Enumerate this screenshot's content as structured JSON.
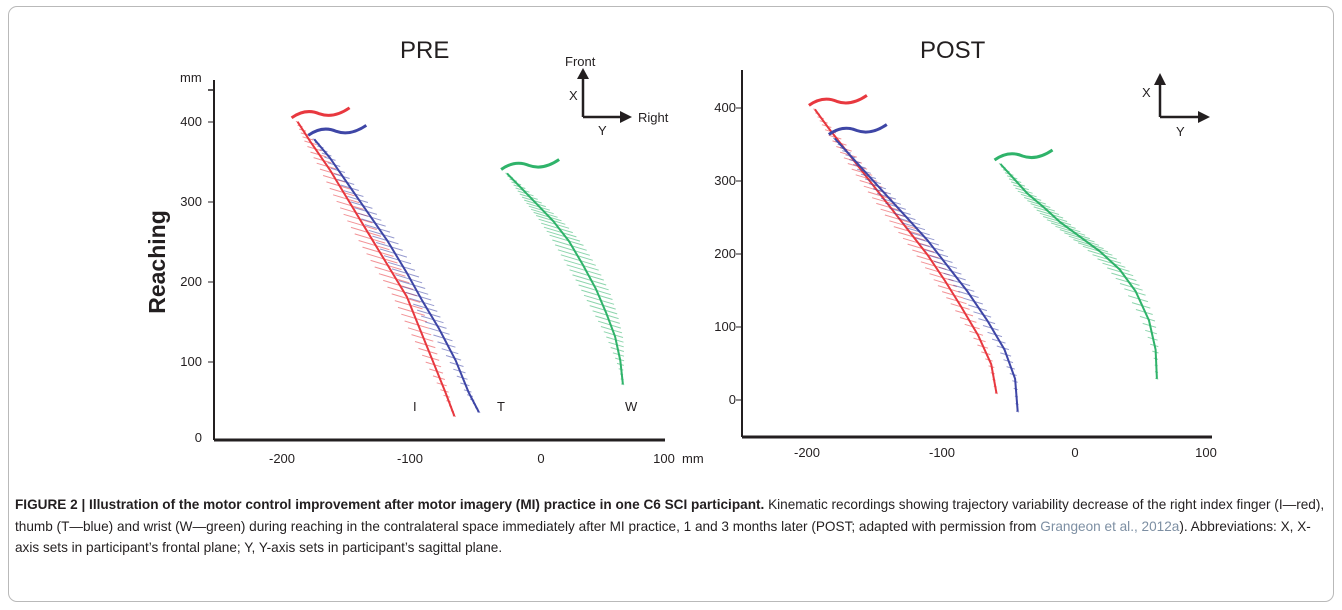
{
  "figure": {
    "panels": [
      {
        "title": "PRE",
        "y_unit": "mm",
        "x_unit": "mm",
        "y_label": "Reaching",
        "x_ticks": [
          "-200",
          "-100",
          "0",
          "100"
        ],
        "y_ticks": [
          "0",
          "100",
          "200",
          "300",
          "400"
        ],
        "legend": {
          "x": "X",
          "y": "Y",
          "front": "Front",
          "right": "Right"
        },
        "trajectory_labels": {
          "index": "I",
          "thumb": "T",
          "wrist": "W"
        }
      },
      {
        "title": "POST",
        "x_ticks": [
          "-200",
          "-100",
          "0",
          "100"
        ],
        "y_ticks": [
          "0",
          "100",
          "200",
          "300",
          "400"
        ],
        "legend": {
          "x": "X",
          "y": "Y"
        }
      }
    ],
    "colors": {
      "index": "#e8383f",
      "thumb": "#3e46a6",
      "wrist": "#2fb36a",
      "text": "#231f20",
      "link": "#7d8fa3"
    }
  },
  "chart_data": [
    {
      "type": "line",
      "title": "PRE",
      "xlabel": "mm",
      "ylabel": "Reaching",
      "xlim": [
        -250,
        100
      ],
      "ylim": [
        0,
        440
      ],
      "series": [
        {
          "name": "I",
          "x": [
            -185,
            -175,
            -160,
            -145,
            -130,
            -115,
            -100,
            -90,
            -80,
            -70,
            -63
          ],
          "y": [
            400,
            375,
            340,
            300,
            260,
            220,
            180,
            140,
            100,
            60,
            30
          ]
        },
        {
          "name": "T",
          "x": [
            -172,
            -160,
            -145,
            -130,
            -115,
            -100,
            -88,
            -75,
            -62,
            -52,
            -44
          ],
          "y": [
            378,
            355,
            320,
            285,
            250,
            210,
            175,
            140,
            100,
            60,
            35
          ]
        },
        {
          "name": "W",
          "x": [
            -22,
            -10,
            2,
            14,
            26,
            37,
            47,
            55,
            62,
            66,
            68
          ],
          "y": [
            335,
            315,
            295,
            275,
            250,
            220,
            190,
            160,
            130,
            100,
            70
          ]
        }
      ]
    },
    {
      "type": "line",
      "title": "POST",
      "xlim": [
        -250,
        100
      ],
      "ylim": [
        -50,
        450
      ],
      "series": [
        {
          "name": "I",
          "x": [
            -195,
            -185,
            -170,
            -155,
            -140,
            -125,
            -110,
            -97,
            -85,
            -72,
            -62,
            -58
          ],
          "y": [
            400,
            375,
            340,
            305,
            270,
            235,
            200,
            165,
            130,
            90,
            50,
            10
          ]
        },
        {
          "name": "T",
          "x": [
            -180,
            -170,
            -155,
            -140,
            -125,
            -110,
            -95,
            -80,
            -65,
            -52,
            -44,
            -42
          ],
          "y": [
            360,
            340,
            310,
            280,
            250,
            220,
            185,
            150,
            110,
            70,
            30,
            -15
          ]
        },
        {
          "name": "W",
          "x": [
            -55,
            -45,
            -35,
            -22,
            -10,
            5,
            20,
            35,
            47,
            57,
            62,
            63
          ],
          "y": [
            325,
            305,
            285,
            265,
            245,
            225,
            205,
            180,
            150,
            110,
            70,
            30
          ]
        }
      ]
    }
  ],
  "caption": {
    "label": "FIGURE 2 | Illustration of the motor control improvement after motor imagery (MI) practice in one C6 SCI participant.",
    "text_1": " Kinematic recordings showing trajectory variability decrease of the right index finger (I—red), thumb (T—blue) and wrist (W—green) during reaching in the contralateral space immediately after MI practice, 1 and 3 months later (POST; adapted with permission from ",
    "citation": "Grangeon et al., 2012a",
    "text_2": "). Abbreviations: X, X-axis sets in participant’s frontal plane; Y, Y-axis sets in participant’s sagittal plane."
  }
}
